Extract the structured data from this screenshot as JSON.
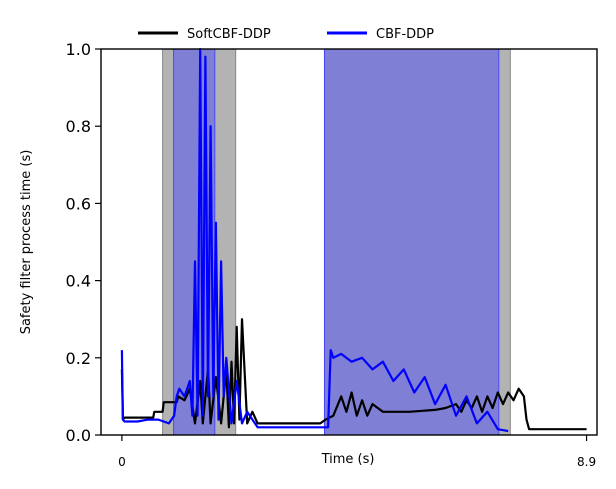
{
  "chart_data": {
    "type": "line",
    "title": "",
    "xlabel": "Time (s)",
    "ylabel": "Safety filter process time (s)",
    "xlim": [
      -0.4,
      9.1
    ],
    "ylim": [
      0,
      1.0
    ],
    "x_ticks": [
      0,
      8.9
    ],
    "x_tick_labels": [
      "0",
      "8.9"
    ],
    "y_ticks": [
      0,
      0.2,
      0.4,
      0.6,
      0.8,
      1.0
    ],
    "y_tick_labels": [
      "0.0",
      "0.2",
      "0.4",
      "0.6",
      "0.8",
      "1.0"
    ],
    "grid": false,
    "legend_placement": "top-center, above plot",
    "series": [
      {
        "name": "SoftCBF-DDP",
        "color": "#000000",
        "x": [
          0,
          0.02,
          0.05,
          0.6,
          0.62,
          0.78,
          0.8,
          1.05,
          1.08,
          1.2,
          1.3,
          1.4,
          1.5,
          1.55,
          1.6,
          1.65,
          1.7,
          1.8,
          1.9,
          2.0,
          2.05,
          2.1,
          2.15,
          2.2,
          2.25,
          2.3,
          2.4,
          2.5,
          2.6,
          3.0,
          3.5,
          3.8,
          3.9,
          4.05,
          4.2,
          4.3,
          4.4,
          4.5,
          4.6,
          4.7,
          4.8,
          5.0,
          5.5,
          6.0,
          6.2,
          6.4,
          6.5,
          6.6,
          6.7,
          6.8,
          6.9,
          7.0,
          7.1,
          7.2,
          7.3,
          7.4,
          7.5,
          7.6,
          7.7,
          7.75,
          7.8,
          8.0,
          8.9
        ],
        "values": [
          0.17,
          0.04,
          0.045,
          0.045,
          0.06,
          0.06,
          0.085,
          0.085,
          0.1,
          0.09,
          0.12,
          0.03,
          0.14,
          0.03,
          0.1,
          0.17,
          0.03,
          0.15,
          0.03,
          0.17,
          0.02,
          0.19,
          0.03,
          0.28,
          0.04,
          0.3,
          0.03,
          0.06,
          0.03,
          0.03,
          0.03,
          0.03,
          0.04,
          0.05,
          0.1,
          0.06,
          0.11,
          0.05,
          0.09,
          0.05,
          0.08,
          0.06,
          0.06,
          0.065,
          0.07,
          0.08,
          0.06,
          0.09,
          0.07,
          0.1,
          0.06,
          0.1,
          0.07,
          0.11,
          0.08,
          0.11,
          0.09,
          0.12,
          0.1,
          0.04,
          0.015,
          0.015,
          0.015
        ]
      },
      {
        "name": "CBF-DDP",
        "color": "#0000ff",
        "x": [
          0,
          0.02,
          0.05,
          0.3,
          0.5,
          0.7,
          0.9,
          1.0,
          1.05,
          1.1,
          1.2,
          1.3,
          1.35,
          1.4,
          1.45,
          1.5,
          1.55,
          1.6,
          1.65,
          1.7,
          1.75,
          1.8,
          1.85,
          1.9,
          1.95,
          2.0,
          2.1,
          2.2,
          2.3,
          2.4,
          2.6,
          2.8,
          3.0,
          3.5,
          3.8,
          3.95,
          4.0,
          4.05,
          4.2,
          4.4,
          4.6,
          4.8,
          5.0,
          5.2,
          5.4,
          5.6,
          5.8,
          6.0,
          6.2,
          6.4,
          6.6,
          6.8,
          7.0,
          7.2,
          7.4
        ],
        "values": [
          0.22,
          0.04,
          0.035,
          0.035,
          0.04,
          0.04,
          0.03,
          0.05,
          0.1,
          0.12,
          0.1,
          0.14,
          0.05,
          0.45,
          0.05,
          1.0,
          0.05,
          0.98,
          0.1,
          0.8,
          0.1,
          0.55,
          0.04,
          0.45,
          0.1,
          0.2,
          0.03,
          0.14,
          0.03,
          0.06,
          0.02,
          0.02,
          0.02,
          0.02,
          0.02,
          0.02,
          0.22,
          0.2,
          0.21,
          0.19,
          0.2,
          0.17,
          0.19,
          0.14,
          0.17,
          0.11,
          0.15,
          0.08,
          0.13,
          0.05,
          0.1,
          0.03,
          0.06,
          0.015,
          0.01
        ]
      }
    ],
    "shaded_regions": [
      {
        "series": "SoftCBF-DDP",
        "color": "#808080",
        "x0": 0.78,
        "x1": 2.18
      },
      {
        "series": "SoftCBF-DDP",
        "color": "#808080",
        "x0": 3.88,
        "x1": 7.44
      },
      {
        "series": "CBF-DDP",
        "color": "#4040ff",
        "x0": 0.99,
        "x1": 1.78
      },
      {
        "series": "CBF-DDP",
        "color": "#4040ff",
        "x0": 3.88,
        "x1": 7.22
      }
    ]
  }
}
